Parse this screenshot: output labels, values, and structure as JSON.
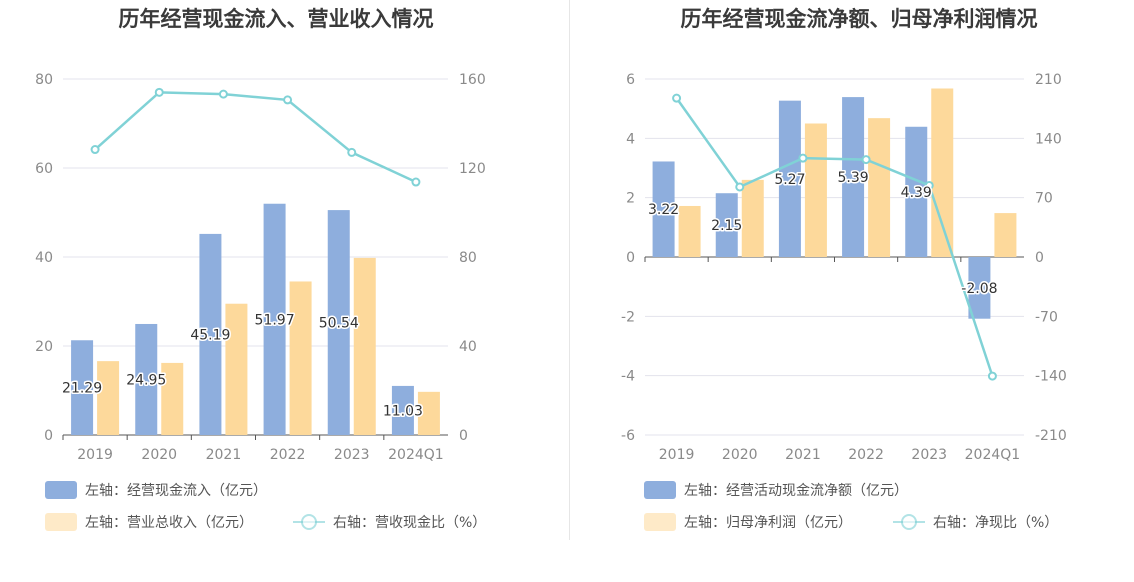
{
  "colors": {
    "bar_primary": "#8eaedd",
    "bar_secondary": "#fdd99b",
    "line": "#80d2d6",
    "grid": "#e3e3ec",
    "axis": "#555555"
  },
  "chart_data": [
    {
      "type": "bar",
      "title": "历年经营现金流入、营业收入情况",
      "categories": [
        "2019",
        "2020",
        "2021",
        "2022",
        "2023",
        "2024Q1"
      ],
      "left_axis": {
        "ticks": [
          "0",
          "20",
          "40",
          "60",
          "80"
        ],
        "ylim": [
          0,
          80
        ]
      },
      "right_axis": {
        "ticks": [
          "0",
          "40",
          "80",
          "120",
          "160"
        ],
        "ylim": [
          0,
          160
        ]
      },
      "series": [
        {
          "name": "左轴：经营现金流入（亿元）",
          "type": "bar",
          "axis": "left",
          "values": [
            21.29,
            24.95,
            45.19,
            51.97,
            50.54,
            11.03
          ],
          "labels": [
            "21.29",
            "24.95",
            "45.19",
            "51.97",
            "50.54",
            "11.03"
          ]
        },
        {
          "name": "左轴：营业总收入（亿元）",
          "type": "bar",
          "axis": "left",
          "values": [
            16.6,
            16.2,
            29.5,
            34.5,
            39.8,
            9.7
          ]
        },
        {
          "name": "右轴：营收现金比（%）",
          "type": "line",
          "axis": "right",
          "values": [
            128.3,
            154.0,
            153.2,
            150.6,
            127.0,
            113.7
          ]
        }
      ]
    },
    {
      "type": "bar",
      "title": "历年经营现金流净额、归母净利润情况",
      "categories": [
        "2019",
        "2020",
        "2021",
        "2022",
        "2023",
        "2024Q1"
      ],
      "left_axis": {
        "ticks": [
          "-6",
          "-4",
          "-2",
          "0",
          "2",
          "4",
          "6"
        ],
        "ylim": [
          -6,
          6
        ]
      },
      "right_axis": {
        "ticks": [
          "-210",
          "-140",
          "-70",
          "0",
          "70",
          "140",
          "210"
        ],
        "ylim": [
          -210,
          210
        ]
      },
      "series": [
        {
          "name": "左轴：经营活动现金流净额（亿元）",
          "type": "bar",
          "axis": "left",
          "values": [
            3.22,
            2.15,
            5.27,
            5.39,
            4.39,
            -2.08
          ],
          "labels": [
            "3.22",
            "2.15",
            "5.27",
            "5.39",
            "4.39",
            "-2.08"
          ]
        },
        {
          "name": "左轴：归母净利润（亿元）",
          "type": "bar",
          "axis": "left",
          "values": [
            1.72,
            2.6,
            4.5,
            4.68,
            5.68,
            1.48
          ]
        },
        {
          "name": "右轴：净现比（%）",
          "type": "line",
          "axis": "right",
          "values": [
            187.4,
            82.6,
            116.6,
            114.9,
            84.4,
            -140.5
          ]
        }
      ]
    }
  ]
}
